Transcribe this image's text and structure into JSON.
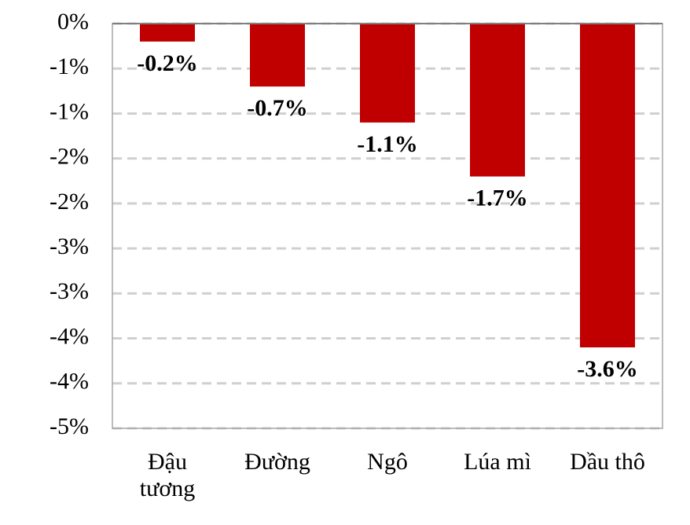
{
  "chart_data": {
    "type": "bar",
    "categories": [
      "Đậu tương",
      "Đường",
      "Ngô",
      "Lúa mì",
      "Dầu thô"
    ],
    "values": [
      -0.2,
      -0.7,
      -1.1,
      -1.7,
      -3.6
    ],
    "value_labels": [
      "-0.2%",
      "-0.7%",
      "-1.1%",
      "-1.7%",
      "-3.6%"
    ],
    "color": "#c00000",
    "ylim": [
      -4.5,
      0
    ],
    "yticks": [
      {
        "value": 0,
        "label": "0%"
      },
      {
        "value": -0.5,
        "label": "-1%"
      },
      {
        "value": -1,
        "label": "-1%"
      },
      {
        "value": -1.5,
        "label": "-2%"
      },
      {
        "value": -2,
        "label": "-2%"
      },
      {
        "value": -2.5,
        "label": "-3%"
      },
      {
        "value": -3,
        "label": "-3%"
      },
      {
        "value": -3.5,
        "label": "-4%"
      },
      {
        "value": -4,
        "label": "-4%"
      },
      {
        "value": -4.5,
        "label": "-5%"
      }
    ],
    "grid": true
  }
}
